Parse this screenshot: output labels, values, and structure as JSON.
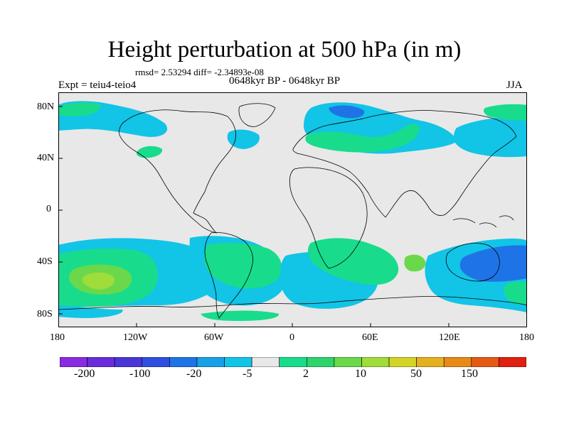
{
  "title": "Height perturbation at 500 hPa (in m)",
  "stats": "rmsd= 2.53294 diff= -2.34893e-08",
  "experiment": "Expt = teiu4-teio4",
  "period": "0648kyr BP - 0648kyr BP",
  "season": "JJA",
  "lat_labels": [
    "80N",
    "40N",
    "0",
    "40S",
    "80S"
  ],
  "lon_labels": [
    "180",
    "120W",
    "60W",
    "0",
    "60E",
    "120E",
    "180"
  ],
  "colorbar": {
    "colors": [
      "#8a2be2",
      "#6a2bdc",
      "#4b35d6",
      "#2e4fe0",
      "#1e74e6",
      "#18a0e6",
      "#12c4e6",
      "#e8e8e8",
      "#18dc8c",
      "#2ed46a",
      "#6ad84a",
      "#a0dc3a",
      "#d4d428",
      "#e4b020",
      "#e88a18",
      "#e45a14",
      "#e02010"
    ],
    "labels": [
      "-200",
      "-100",
      "-20",
      "-5",
      "2",
      "10",
      "50",
      "150"
    ]
  }
}
